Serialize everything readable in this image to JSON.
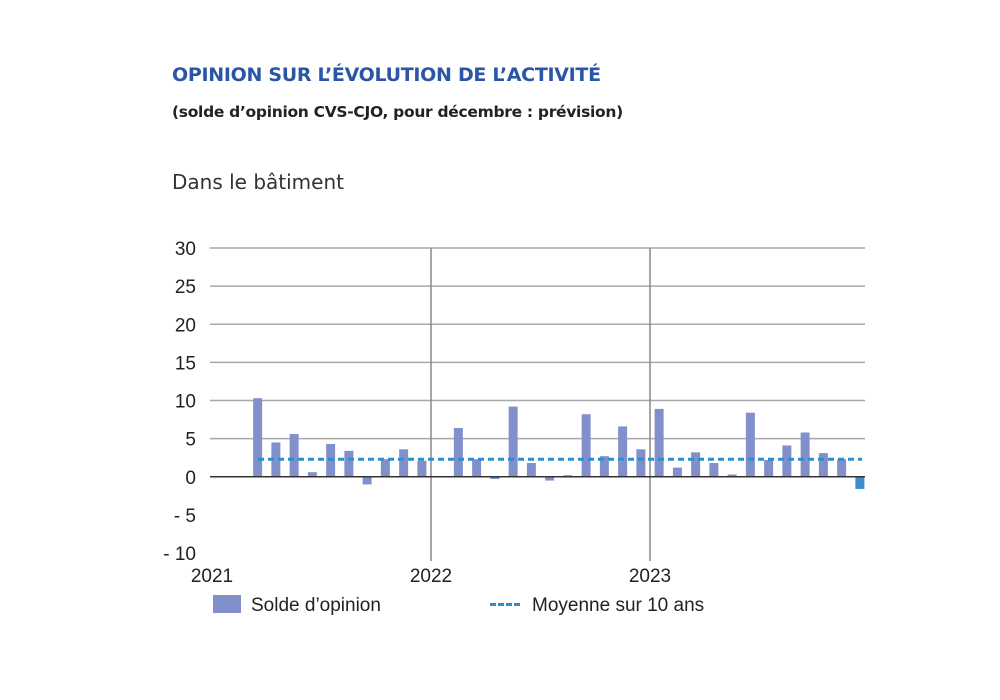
{
  "chart_data": {
    "type": "bar",
    "title": "OPINION SUR L’ÉVOLUTION DE L’ACTIVITÉ",
    "subtitle": "(solde d’opinion CVS-CJO, pour décembre : prévision)",
    "panel_title": "Dans le bâtiment",
    "ylim": [
      -10,
      30
    ],
    "yticks": [
      30,
      25,
      20,
      15,
      10,
      5,
      0,
      -5,
      -10
    ],
    "ytick_labels": [
      "30",
      "25",
      "20",
      "15",
      "10",
      "5",
      "0",
      "- 5",
      "- 10"
    ],
    "xticks": [
      "2021",
      "2022",
      "2023"
    ],
    "grid": "horizontal",
    "legend_placement": "bottom",
    "categories": [
      "2021-03",
      "2021-04",
      "2021-05",
      "2021-06",
      "2021-07",
      "2021-08",
      "2021-09",
      "2021-10",
      "2021-11",
      "2021-12",
      "2022-01",
      "2022-02",
      "2022-03",
      "2022-04",
      "2022-05",
      "2022-06",
      "2022-07",
      "2022-08",
      "2022-09",
      "2022-10",
      "2022-11",
      "2022-12",
      "2023-01",
      "2023-02",
      "2023-03",
      "2023-04",
      "2023-05",
      "2023-06",
      "2023-07",
      "2023-08",
      "2023-09",
      "2023-10",
      "2023-11",
      "2023-12"
    ],
    "series": [
      {
        "name": "Solde d’opinion",
        "color": "#8190cb",
        "forecast_color": "#3a8fd2",
        "values": [
          10.3,
          4.5,
          5.6,
          0.6,
          4.3,
          3.4,
          -1.0,
          2.3,
          3.6,
          2.1,
          null,
          6.4,
          2.3,
          -0.3,
          9.2,
          1.8,
          -0.5,
          0.2,
          8.2,
          2.7,
          6.6,
          3.6,
          8.9,
          1.2,
          3.2,
          1.8,
          0.3,
          8.4,
          2.2,
          4.1,
          5.8,
          3.1,
          2.3,
          -1.6
        ]
      },
      {
        "name": "Moyenne sur 10 ans",
        "color": "#2a8fd0",
        "style": "dashed",
        "value": 2.3
      }
    ]
  }
}
